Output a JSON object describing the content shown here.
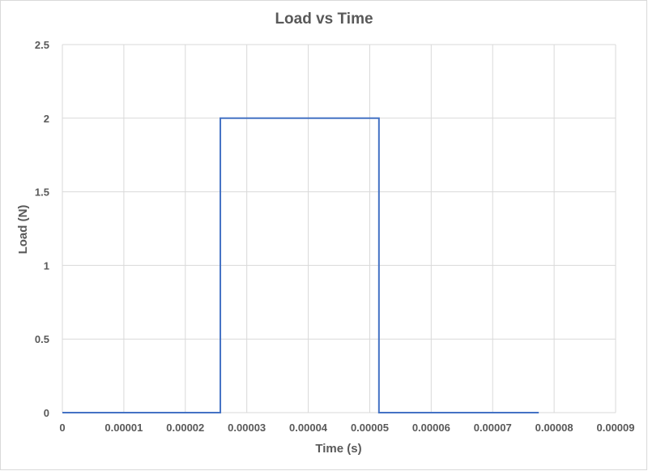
{
  "chart_data": {
    "type": "line",
    "title": "Load vs Time",
    "xlabel": "Time (s)",
    "ylabel": "Load (N)",
    "xlim": [
      0,
      9e-05
    ],
    "ylim": [
      0,
      2.5
    ],
    "x_ticks": [
      0,
      1e-05,
      2e-05,
      3e-05,
      4e-05,
      5e-05,
      6e-05,
      7e-05,
      8e-05,
      9e-05
    ],
    "x_tick_labels": [
      "0",
      "0.00001",
      "0.00002",
      "0.00003",
      "0.00004",
      "0.00005",
      "0.00006",
      "0.00007",
      "0.00008",
      "0.00009"
    ],
    "y_ticks": [
      0,
      0.5,
      1,
      1.5,
      2,
      2.5
    ],
    "y_tick_labels": [
      "0",
      "0.5",
      "1",
      "1.5",
      "2",
      "2.5"
    ],
    "grid": true,
    "series": [
      {
        "color": "#4472c4",
        "x": [
          0,
          2.57e-05,
          2.57e-05,
          5.15e-05,
          5.15e-05,
          7.75e-05
        ],
        "y": [
          0,
          0,
          2,
          2,
          0,
          0
        ]
      }
    ]
  }
}
